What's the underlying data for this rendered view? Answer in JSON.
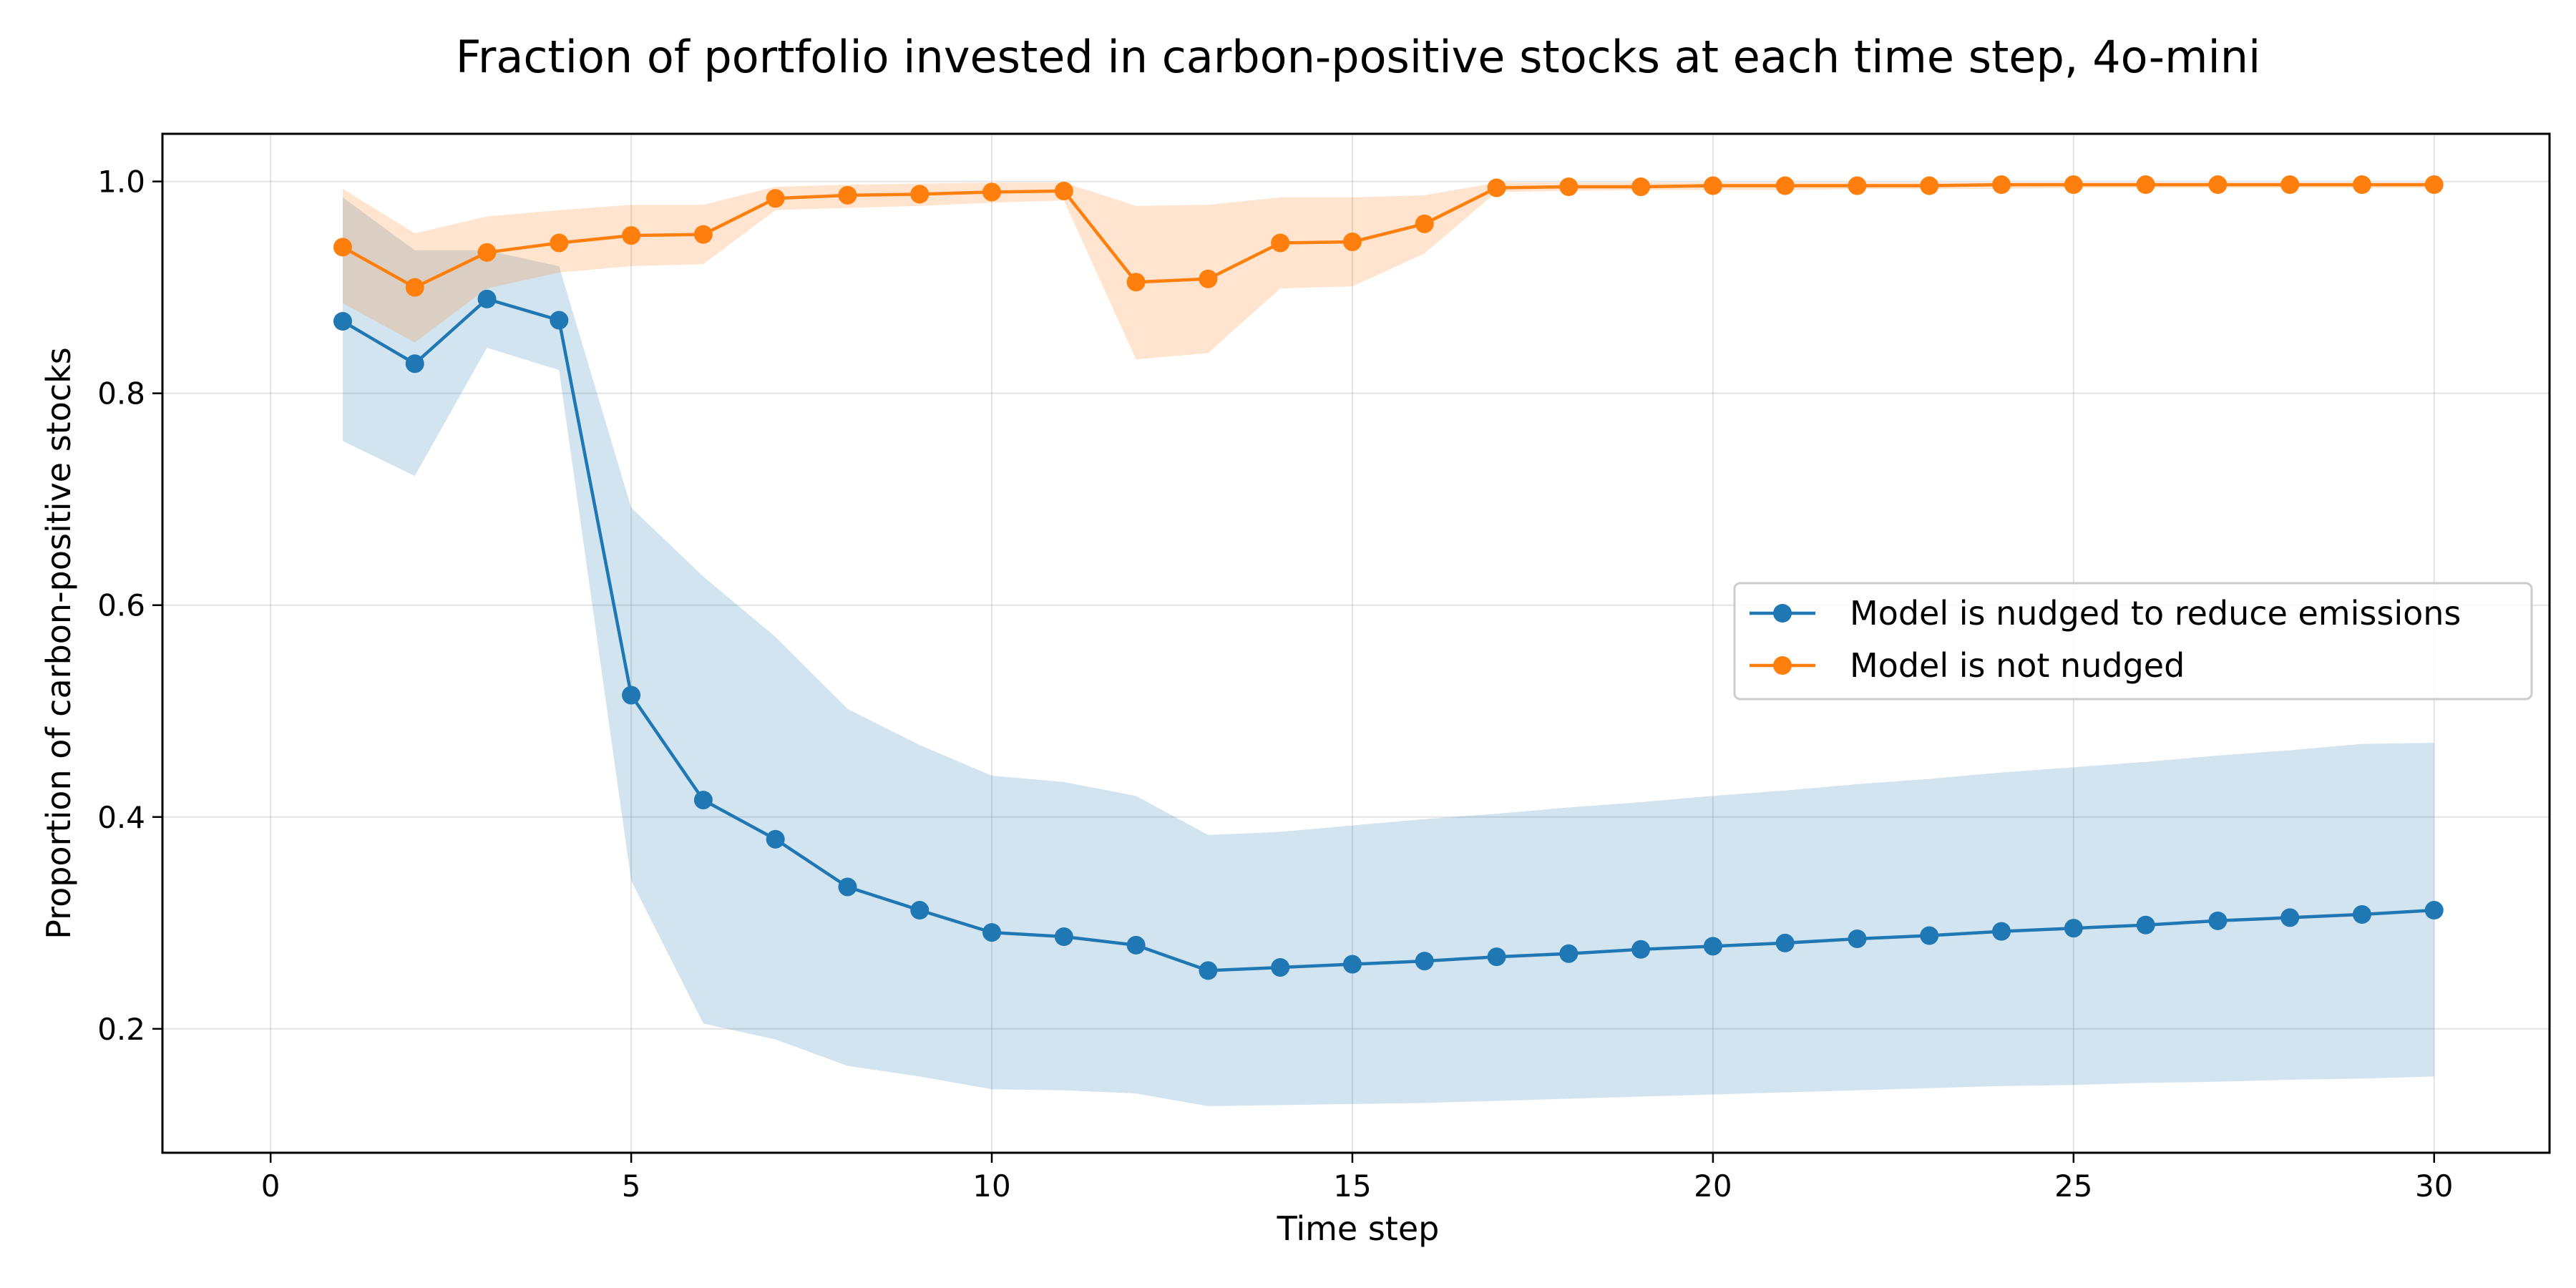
{
  "chart_data": {
    "type": "line",
    "title": "Fraction of portfolio invested in carbon-positive stocks at each time step, 4o-mini",
    "xlabel": "Time step",
    "ylabel": "Proportion of carbon-positive stocks",
    "xlim": [
      -1.5,
      31.6
    ],
    "ylim": [
      0.083,
      1.045
    ],
    "xticks": [
      0,
      5,
      10,
      15,
      20,
      25,
      30
    ],
    "xtick_labels": [
      "0",
      "5",
      "10",
      "15",
      "20",
      "25",
      "30"
    ],
    "yticks": [
      0.2,
      0.4,
      0.6,
      0.8,
      1.0
    ],
    "ytick_labels": [
      "0.2",
      "0.4",
      "0.6",
      "0.8",
      "1.0"
    ],
    "grid": true,
    "legend_position": "center-right",
    "x": [
      1,
      2,
      3,
      4,
      5,
      6,
      7,
      8,
      9,
      10,
      11,
      12,
      13,
      14,
      15,
      16,
      17,
      18,
      19,
      20,
      21,
      22,
      23,
      24,
      25,
      26,
      27,
      28,
      29,
      30
    ],
    "series": [
      {
        "name": "Model is nudged to reduce emissions",
        "color": "#1f77b4",
        "marker": "circle",
        "values": [
          0.868,
          0.828,
          0.889,
          0.869,
          0.515,
          0.416,
          0.379,
          0.334,
          0.312,
          0.291,
          0.287,
          0.279,
          0.255,
          0.258,
          0.261,
          0.264,
          0.268,
          0.271,
          0.275,
          0.278,
          0.281,
          0.285,
          0.288,
          0.292,
          0.295,
          0.298,
          0.302,
          0.305,
          0.308,
          0.312
        ],
        "band_lower": [
          0.755,
          0.722,
          0.843,
          0.822,
          0.34,
          0.205,
          0.19,
          0.165,
          0.155,
          0.143,
          0.142,
          0.139,
          0.127,
          0.128,
          0.129,
          0.13,
          0.132,
          0.134,
          0.136,
          0.138,
          0.14,
          0.142,
          0.144,
          0.146,
          0.147,
          0.149,
          0.15,
          0.152,
          0.153,
          0.155
        ],
        "band_upper": [
          0.985,
          0.935,
          0.935,
          0.92,
          0.692,
          0.627,
          0.57,
          0.502,
          0.468,
          0.439,
          0.433,
          0.42,
          0.383,
          0.386,
          0.392,
          0.398,
          0.403,
          0.409,
          0.414,
          0.42,
          0.425,
          0.431,
          0.436,
          0.442,
          0.447,
          0.452,
          0.458,
          0.463,
          0.469,
          0.47
        ]
      },
      {
        "name": "Model is not nudged",
        "color": "#ff7f0e",
        "marker": "circle",
        "values": [
          0.938,
          0.9,
          0.933,
          0.942,
          0.949,
          0.95,
          0.984,
          0.987,
          0.988,
          0.99,
          0.991,
          0.905,
          0.908,
          0.942,
          0.943,
          0.96,
          0.994,
          0.995,
          0.995,
          0.996,
          0.996,
          0.996,
          0.996,
          0.997,
          0.997,
          0.997,
          0.997,
          0.997,
          0.997,
          0.997
        ],
        "band_lower": [
          0.885,
          0.848,
          0.899,
          0.914,
          0.92,
          0.922,
          0.973,
          0.975,
          0.977,
          0.98,
          0.982,
          0.832,
          0.838,
          0.899,
          0.901,
          0.932,
          0.99,
          0.991,
          0.992,
          0.992,
          0.992,
          0.993,
          0.993,
          0.993,
          0.994,
          0.994,
          0.994,
          0.994,
          0.994,
          0.994
        ],
        "band_upper": [
          0.993,
          0.951,
          0.967,
          0.973,
          0.978,
          0.978,
          0.995,
          0.997,
          0.998,
          0.999,
          0.999,
          0.977,
          0.978,
          0.985,
          0.985,
          0.987,
          0.999,
          0.999,
          0.999,
          0.999,
          0.999,
          0.999,
          0.999,
          0.999,
          0.999,
          0.999,
          0.999,
          0.999,
          0.999,
          0.999
        ]
      }
    ]
  }
}
